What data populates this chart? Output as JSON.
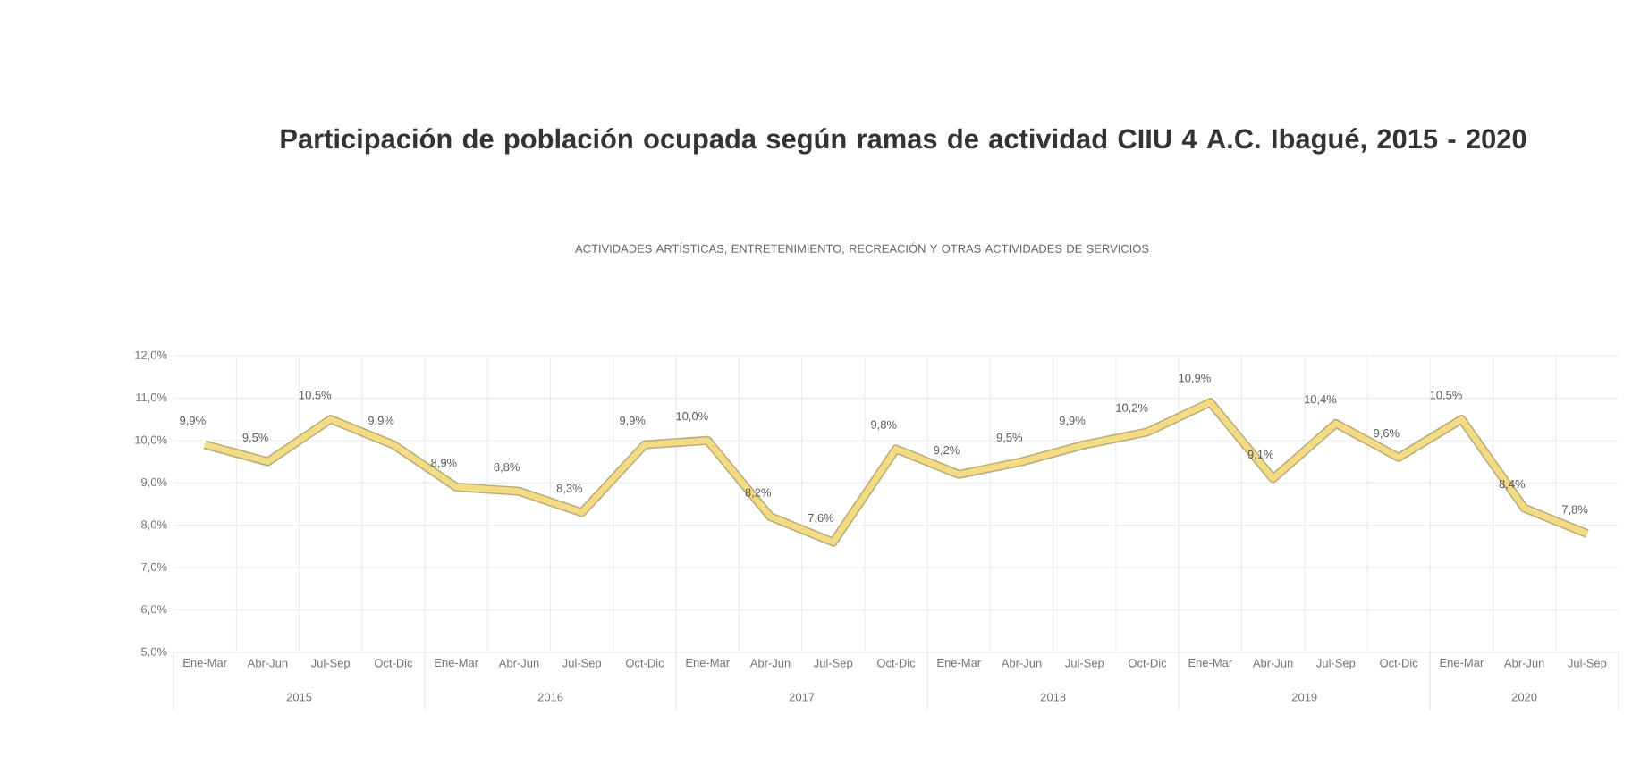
{
  "chart_data": {
    "type": "line",
    "title": "Participación de población ocupada según ramas de actividad CIIU 4 A.C.  Ibagué, 2015 - 2020",
    "subtitle": "ACTIVIDADES ARTÍSTICAS, ENTRETENIMIENTO, RECREACIÓN Y OTRAS ACTIVIDADES DE SERVICIOS",
    "categories": [
      "Ene-Mar",
      "Abr-Jun",
      "Jul-Sep",
      "Oct-Dic",
      "Ene-Mar",
      "Abr-Jun",
      "Jul-Sep",
      "Oct-Dic",
      "Ene-Mar",
      "Abr-Jun",
      "Jul-Sep",
      "Oct-Dic",
      "Ene-Mar",
      "Abr-Jun",
      "Jul-Sep",
      "Oct-Dic",
      "Ene-Mar",
      "Abr-Jun",
      "Jul-Sep",
      "Oct-Dic",
      "Ene-Mar",
      "Abr-Jun",
      "Jul-Sep"
    ],
    "values": [
      9.9,
      9.5,
      10.5,
      9.9,
      8.9,
      8.8,
      8.3,
      9.9,
      10.0,
      8.2,
      7.6,
      9.8,
      9.2,
      9.5,
      9.9,
      10.2,
      10.9,
      9.1,
      10.4,
      9.6,
      10.5,
      8.4,
      7.8
    ],
    "value_labels": [
      "9,9%",
      "9,5%",
      "10,5%",
      "9,9%",
      "8,9%",
      "8,8%",
      "8,3%",
      "9,9%",
      "10,0%",
      "8,2%",
      "7,6%",
      "9,8%",
      "9,2%",
      "9,5%",
      "9,9%",
      "10,2%",
      "10,9%",
      "9,1%",
      "10,4%",
      "9,6%",
      "10,5%",
      "8,4%",
      "7,8%"
    ],
    "color": "#f3dc84",
    "annotations": [
      "2015",
      "2016",
      "2017",
      "2018",
      "2019",
      "2020"
    ],
    "ylim": [
      5,
      12
    ],
    "yticks": [
      {
        "value": 5,
        "label": "5,0%"
      },
      {
        "value": 6,
        "label": "6,0%"
      },
      {
        "value": 7,
        "label": "7,0%"
      },
      {
        "value": 8,
        "label": "8,0%"
      },
      {
        "value": 9,
        "label": "9,0%"
      },
      {
        "value": 10,
        "label": "10,0%"
      },
      {
        "value": 11,
        "label": "11,0%"
      },
      {
        "value": 12,
        "label": "12,0%"
      }
    ],
    "grid": true,
    "marker": "none",
    "line_style": "solid"
  }
}
